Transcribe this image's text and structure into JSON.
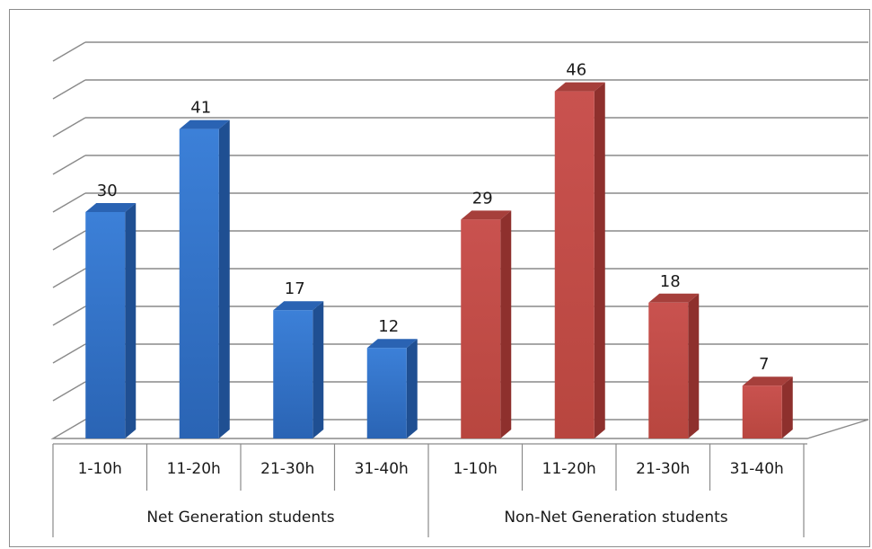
{
  "chart_data": {
    "type": "bar",
    "groups": [
      {
        "name": "Net Generation students",
        "color": "#2e6fc7",
        "categories": [
          "1-10h",
          "11-20h",
          "21-30h",
          "31-40h"
        ],
        "values": [
          30,
          41,
          17,
          12
        ]
      },
      {
        "name": "Non-Net Generation students",
        "color": "#c0504d",
        "categories": [
          "1-10h",
          "11-20h",
          "21-30h",
          "31-40h"
        ],
        "values": [
          29,
          46,
          18,
          7
        ]
      }
    ],
    "ylim": [
      0,
      50
    ],
    "y_gridline_step": 5,
    "grid": true,
    "data_labels": true,
    "three_d": true,
    "y_tick_labels": false,
    "legend": "none"
  }
}
